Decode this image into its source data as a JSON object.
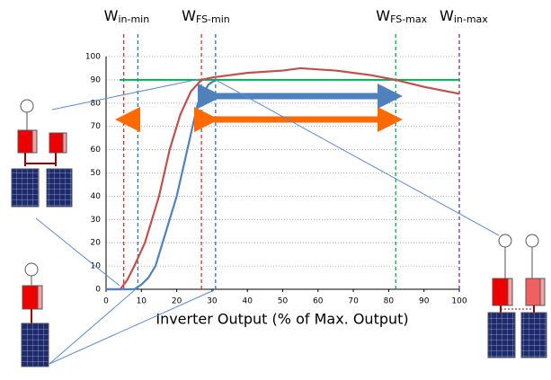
{
  "chart_data": {
    "type": "line",
    "xlabel": "Inverter Output (% of Max. Output)",
    "xlim": [
      0,
      100
    ],
    "xticks": [
      0,
      10,
      20,
      30,
      40,
      50,
      60,
      70,
      80,
      90,
      100
    ],
    "ylim": [
      0,
      100
    ],
    "yticks": [
      0,
      10,
      20,
      30,
      40,
      50,
      60,
      70,
      80,
      90,
      100
    ],
    "grid": true,
    "series": [
      {
        "color": "#c0504d",
        "x": [
          0,
          4,
          6,
          8,
          11,
          13,
          15,
          18,
          21,
          24,
          27,
          30,
          35,
          40,
          50,
          55,
          65,
          75,
          82,
          90,
          100
        ],
        "values": [
          0,
          0,
          4,
          10,
          20,
          30,
          40,
          60,
          75,
          85,
          90,
          91,
          92,
          93,
          94,
          95,
          94,
          92,
          90,
          87,
          84
        ]
      },
      {
        "color": "#4f81bd",
        "x": [
          0,
          8,
          10,
          12,
          14,
          16,
          18,
          20,
          23,
          26,
          29,
          31
        ],
        "values": [
          0,
          0,
          2,
          5,
          10,
          20,
          30,
          40,
          60,
          80,
          88,
          90
        ]
      }
    ],
    "reference_line": {
      "value": 90,
      "color": "#00b050"
    },
    "markers": [
      {
        "value": 5,
        "color": "#e03030",
        "label": "W",
        "sub": "in-min"
      },
      {
        "value": 9,
        "color": "#2e75b6"
      },
      {
        "value": 27,
        "color": "#e03030",
        "label": "W",
        "sub": "FS-min"
      },
      {
        "value": 31,
        "color": "#2e75b6"
      },
      {
        "value": 82,
        "color": "#00b050",
        "label": "W",
        "sub": "FS-max"
      },
      {
        "value": 100,
        "color": "#7030a0",
        "label": "W",
        "sub": "in-max"
      }
    ]
  }
}
